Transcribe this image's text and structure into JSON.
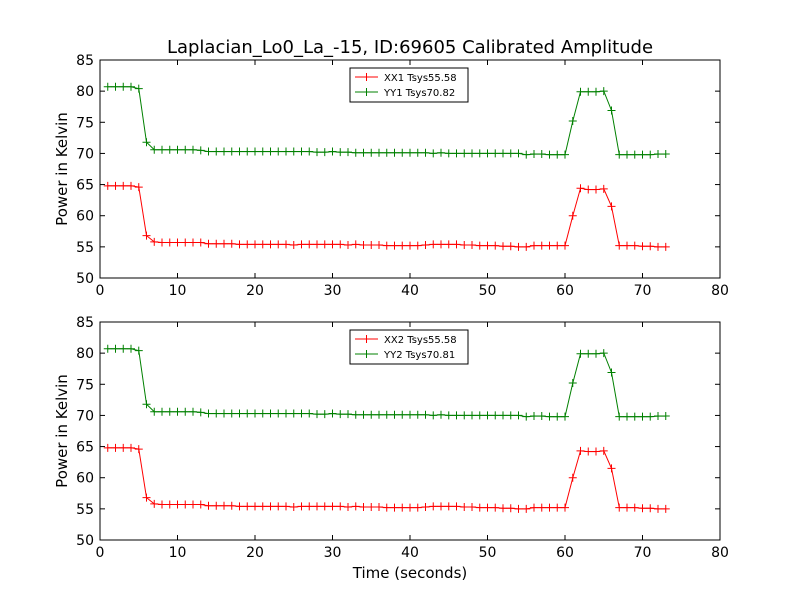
{
  "figure": {
    "title": "Laplacian_Lo0_La_-15, ID:69605 Calibrated Amplitude"
  },
  "chart_data": [
    {
      "type": "line",
      "xlabel": "",
      "ylabel": "Power in Kelvin",
      "xlim": [
        0,
        80
      ],
      "ylim": [
        50,
        85
      ],
      "xticks": [
        "0",
        "10",
        "20",
        "30",
        "40",
        "50",
        "60",
        "70",
        "80"
      ],
      "yticks": [
        "50",
        "55",
        "60",
        "65",
        "70",
        "75",
        "80",
        "85"
      ],
      "grid": false,
      "legend_position": "upper-center",
      "x": [
        1,
        2,
        3,
        4,
        5,
        6,
        7,
        8,
        9,
        10,
        11,
        12,
        13,
        14,
        15,
        16,
        17,
        18,
        19,
        20,
        21,
        22,
        23,
        24,
        25,
        26,
        27,
        28,
        29,
        30,
        31,
        32,
        33,
        34,
        35,
        36,
        37,
        38,
        39,
        40,
        41,
        42,
        43,
        44,
        45,
        46,
        47,
        48,
        49,
        50,
        51,
        52,
        53,
        54,
        55,
        56,
        57,
        58,
        59,
        60,
        61,
        62,
        63,
        64,
        65,
        66,
        67,
        68,
        69,
        70,
        71,
        72,
        73
      ],
      "series": [
        {
          "name": "XX1 Tsys55.58",
          "color": "#ff0000",
          "values": [
            64.8,
            64.8,
            64.8,
            64.8,
            64.6,
            56.8,
            55.8,
            55.7,
            55.7,
            55.7,
            55.7,
            55.7,
            55.7,
            55.5,
            55.5,
            55.5,
            55.5,
            55.4,
            55.4,
            55.4,
            55.4,
            55.4,
            55.4,
            55.4,
            55.3,
            55.4,
            55.4,
            55.4,
            55.4,
            55.4,
            55.4,
            55.3,
            55.4,
            55.3,
            55.3,
            55.3,
            55.2,
            55.2,
            55.2,
            55.2,
            55.2,
            55.3,
            55.4,
            55.4,
            55.4,
            55.4,
            55.3,
            55.3,
            55.2,
            55.2,
            55.2,
            55.1,
            55.1,
            55.0,
            55.0,
            55.2,
            55.2,
            55.2,
            55.2,
            55.2,
            60.0,
            64.4,
            64.2,
            64.2,
            64.3,
            61.5,
            55.2,
            55.2,
            55.2,
            55.1,
            55.1,
            55.0,
            55.0
          ]
        },
        {
          "name": "YY1 Tsys70.82",
          "color": "#008000",
          "values": [
            80.7,
            80.7,
            80.7,
            80.7,
            80.4,
            71.8,
            70.6,
            70.6,
            70.6,
            70.6,
            70.6,
            70.6,
            70.5,
            70.3,
            70.3,
            70.3,
            70.3,
            70.3,
            70.3,
            70.3,
            70.3,
            70.3,
            70.3,
            70.3,
            70.3,
            70.3,
            70.3,
            70.2,
            70.2,
            70.3,
            70.2,
            70.2,
            70.1,
            70.1,
            70.1,
            70.1,
            70.1,
            70.1,
            70.1,
            70.1,
            70.1,
            70.1,
            70.0,
            70.1,
            70.0,
            70.0,
            70.0,
            70.0,
            70.0,
            70.0,
            70.0,
            70.0,
            70.0,
            70.0,
            69.8,
            69.9,
            69.9,
            69.8,
            69.8,
            69.8,
            75.2,
            79.9,
            79.9,
            79.9,
            80.0,
            76.9,
            69.8,
            69.8,
            69.8,
            69.8,
            69.8,
            69.9,
            69.9
          ]
        }
      ]
    },
    {
      "type": "line",
      "xlabel": "Time (seconds)",
      "ylabel": "Power in Kelvin",
      "xlim": [
        0,
        80
      ],
      "ylim": [
        50,
        85
      ],
      "xticks": [
        "0",
        "10",
        "20",
        "30",
        "40",
        "50",
        "60",
        "70",
        "80"
      ],
      "yticks": [
        "50",
        "55",
        "60",
        "65",
        "70",
        "75",
        "80",
        "85"
      ],
      "grid": false,
      "legend_position": "upper-center",
      "x": [
        1,
        2,
        3,
        4,
        5,
        6,
        7,
        8,
        9,
        10,
        11,
        12,
        13,
        14,
        15,
        16,
        17,
        18,
        19,
        20,
        21,
        22,
        23,
        24,
        25,
        26,
        27,
        28,
        29,
        30,
        31,
        32,
        33,
        34,
        35,
        36,
        37,
        38,
        39,
        40,
        41,
        42,
        43,
        44,
        45,
        46,
        47,
        48,
        49,
        50,
        51,
        52,
        53,
        54,
        55,
        56,
        57,
        58,
        59,
        60,
        61,
        62,
        63,
        64,
        65,
        66,
        67,
        68,
        69,
        70,
        71,
        72,
        73
      ],
      "series": [
        {
          "name": "XX2 Tsys55.58",
          "color": "#ff0000",
          "values": [
            64.8,
            64.8,
            64.8,
            64.8,
            64.6,
            56.8,
            55.8,
            55.7,
            55.7,
            55.7,
            55.7,
            55.7,
            55.7,
            55.5,
            55.5,
            55.5,
            55.5,
            55.4,
            55.4,
            55.4,
            55.4,
            55.4,
            55.4,
            55.4,
            55.3,
            55.4,
            55.4,
            55.4,
            55.4,
            55.4,
            55.4,
            55.3,
            55.4,
            55.3,
            55.3,
            55.3,
            55.2,
            55.2,
            55.2,
            55.2,
            55.2,
            55.3,
            55.4,
            55.4,
            55.4,
            55.4,
            55.3,
            55.3,
            55.2,
            55.2,
            55.2,
            55.1,
            55.1,
            55.0,
            55.0,
            55.2,
            55.2,
            55.2,
            55.2,
            55.2,
            60.0,
            64.3,
            64.2,
            64.2,
            64.3,
            61.5,
            55.2,
            55.2,
            55.2,
            55.1,
            55.1,
            55.0,
            55.0
          ]
        },
        {
          "name": "YY2 Tsys70.81",
          "color": "#008000",
          "values": [
            80.7,
            80.7,
            80.7,
            80.7,
            80.4,
            71.8,
            70.6,
            70.6,
            70.6,
            70.6,
            70.6,
            70.6,
            70.5,
            70.3,
            70.3,
            70.3,
            70.3,
            70.3,
            70.3,
            70.3,
            70.3,
            70.3,
            70.3,
            70.3,
            70.3,
            70.3,
            70.3,
            70.2,
            70.2,
            70.3,
            70.2,
            70.2,
            70.1,
            70.1,
            70.1,
            70.1,
            70.1,
            70.1,
            70.1,
            70.1,
            70.1,
            70.1,
            70.0,
            70.1,
            70.0,
            70.0,
            70.0,
            70.0,
            70.0,
            70.0,
            70.0,
            70.0,
            70.0,
            70.0,
            69.8,
            69.9,
            69.9,
            69.8,
            69.8,
            69.8,
            75.2,
            79.9,
            79.9,
            79.9,
            80.0,
            76.9,
            69.8,
            69.8,
            69.8,
            69.8,
            69.8,
            69.9,
            69.9
          ]
        }
      ]
    }
  ]
}
